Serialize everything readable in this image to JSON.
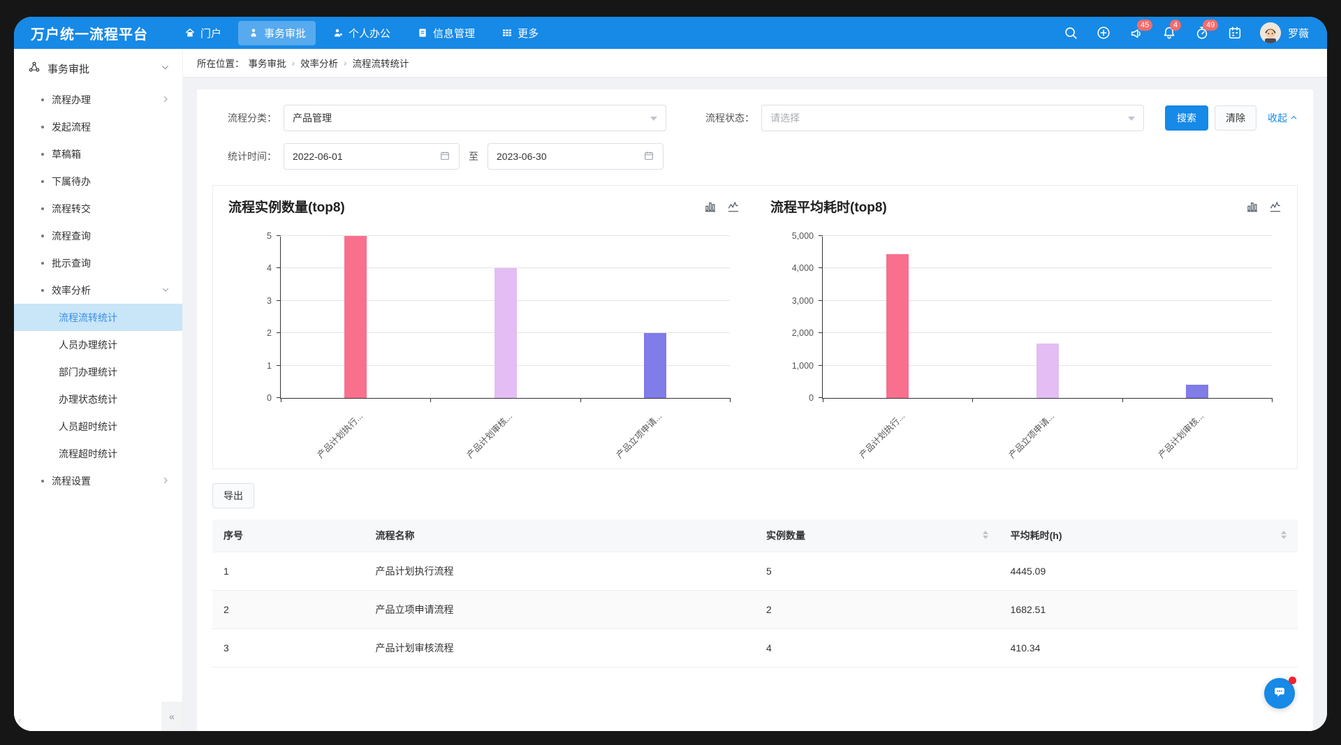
{
  "app": {
    "title": "万户统一流程平台",
    "user_name": "罗薇"
  },
  "navbar": {
    "items": [
      "门户",
      "事务审批",
      "个人办公",
      "信息管理",
      "更多"
    ],
    "badges": {
      "announce": "45",
      "bell": "4",
      "timer": "49"
    }
  },
  "sidebar": {
    "header": "事务审批",
    "items": [
      "流程办理",
      "发起流程",
      "草稿箱",
      "下属待办",
      "流程转交",
      "流程查询",
      "批示查询",
      "效率分析",
      "流程设置"
    ],
    "submenu": [
      "流程流转统计",
      "人员办理统计",
      "部门办理统计",
      "办理状态统计",
      "人员超时统计",
      "流程超时统计"
    ],
    "collapse_left": "‹",
    "collapse_right": "«"
  },
  "breadcrumb": {
    "prefix": "所在位置：",
    "crumbs": [
      "事务审批",
      "效率分析",
      "流程流转统计"
    ],
    "separator": "›"
  },
  "filters": {
    "category_label": "流程分类：",
    "category_value": "产品管理",
    "status_label": "流程状态：",
    "status_placeholder": "请选择",
    "time_label": "统计时间：",
    "date_from": "2022-06-01",
    "date_to": "2023-06-30",
    "to_text": "至",
    "search_label": "搜索",
    "clear_label": "清除",
    "collapse_label": "收起"
  },
  "export_label": "导出",
  "table": {
    "headers": [
      "序号",
      "流程名称",
      "实例数量",
      "平均耗时(h)"
    ],
    "rows": [
      [
        "1",
        "产品计划执行流程",
        "5",
        "4445.09"
      ],
      [
        "2",
        "产品立项申请流程",
        "2",
        "1682.51"
      ],
      [
        "3",
        "产品计划审核流程",
        "4",
        "410.34"
      ]
    ]
  },
  "chart_data": [
    {
      "type": "bar",
      "title": "流程实例数量(top8)",
      "categories": [
        "产品计划执行...",
        "产品计划审核...",
        "产品立项申请..."
      ],
      "values": [
        5,
        4,
        2
      ],
      "colors": [
        "#F8708E",
        "#E3BDF3",
        "#807CE8"
      ],
      "ylim": [
        0,
        5
      ],
      "yticks": [
        0,
        1,
        2,
        3,
        4,
        5
      ],
      "ytick_labels": [
        "0",
        "1",
        "2",
        "3",
        "4",
        "5"
      ],
      "grid": true,
      "legend": "none"
    },
    {
      "type": "bar",
      "title": "流程平均耗时(top8)",
      "categories": [
        "产品计划执行...",
        "产品立项申请...",
        "产品计划审核..."
      ],
      "values": [
        4445.09,
        1682.51,
        410.34
      ],
      "colors": [
        "#F8708E",
        "#E3BDF3",
        "#807CE8"
      ],
      "ylim": [
        0,
        5000
      ],
      "yticks": [
        0,
        1000,
        2000,
        3000,
        4000,
        5000
      ],
      "ytick_labels": [
        "0",
        "1,000",
        "2,000",
        "3,000",
        "4,000",
        "5,000"
      ],
      "grid": true,
      "legend": "none"
    }
  ],
  "colors": {
    "accent": "#1789E6",
    "badge": "#F56C6C",
    "sidebar_active_bg": "#C9E5F8",
    "sidebar_active_text": "#3A8EE6"
  }
}
